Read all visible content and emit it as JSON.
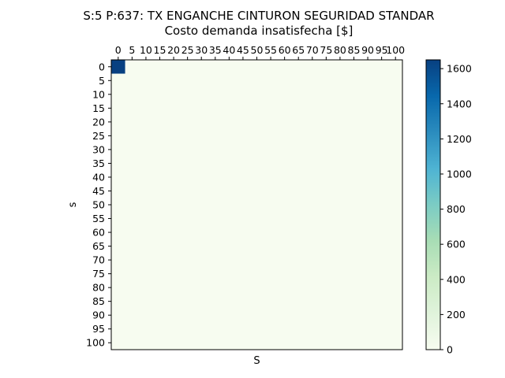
{
  "chart_data": {
    "type": "heatmap",
    "title": "S:5 P:637: TX ENGANCHE CINTURON SEGURIDAD STANDAR",
    "subtitle": "Costo demanda insatisfecha [$]",
    "xlabel": "S",
    "ylabel": "s",
    "x_ticks": [
      "0",
      "5",
      "10",
      "15",
      "20",
      "25",
      "30",
      "35",
      "40",
      "45",
      "50",
      "55",
      "60",
      "65",
      "70",
      "75",
      "80",
      "85",
      "90",
      "95",
      "100"
    ],
    "y_ticks": [
      "0",
      "5",
      "10",
      "15",
      "20",
      "25",
      "30",
      "35",
      "40",
      "45",
      "50",
      "55",
      "60",
      "65",
      "70",
      "75",
      "80",
      "85",
      "90",
      "95",
      "100"
    ],
    "grid_size": 21,
    "x_axis_position": "top",
    "background_value": 0,
    "cells": [
      {
        "s": 0,
        "S": 0,
        "value": 1650
      }
    ],
    "colorbar": {
      "cmap": "GnBu",
      "range": [
        0,
        1650
      ],
      "ticks": [
        0,
        200,
        400,
        600,
        800,
        1000,
        1200,
        1400,
        1600
      ]
    },
    "grid": false
  }
}
